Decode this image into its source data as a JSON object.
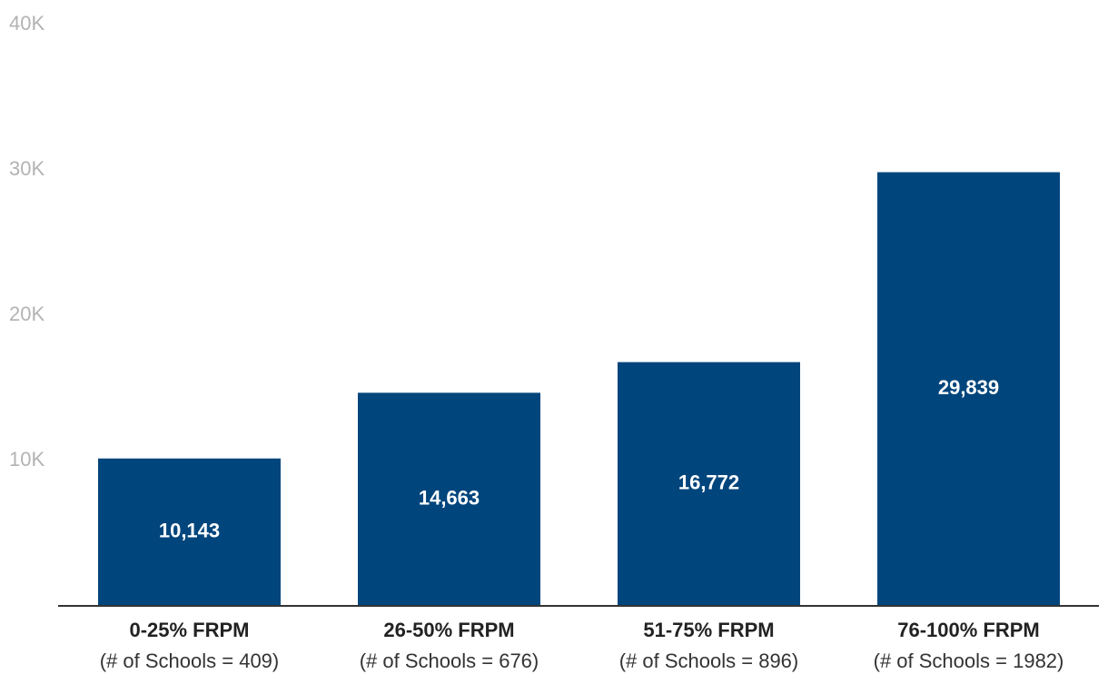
{
  "chart_data": {
    "type": "bar",
    "categories": [
      "0-25% FRPM",
      "26-50% FRPM",
      "51-75% FRPM",
      "76-100% FRPM"
    ],
    "category_sublabels": [
      "(# of Schools = 409)",
      "(# of Schools = 676)",
      "(# of Schools = 896)",
      "(# of Schools = 1982)"
    ],
    "values": [
      10143,
      14663,
      16772,
      29839
    ],
    "data_labels": [
      "10,143",
      "14,663",
      "16,772",
      "29,839"
    ],
    "ylim": [
      0,
      40000
    ],
    "yticks": [
      10000,
      20000,
      30000,
      40000
    ],
    "ytick_labels": [
      "10K",
      "20K",
      "30K",
      "40K"
    ],
    "grid": false,
    "colors": {
      "bar": "#00457c",
      "axis": "#333333",
      "tick_text": "#b3b3b3",
      "data_label": "#ffffff"
    }
  }
}
